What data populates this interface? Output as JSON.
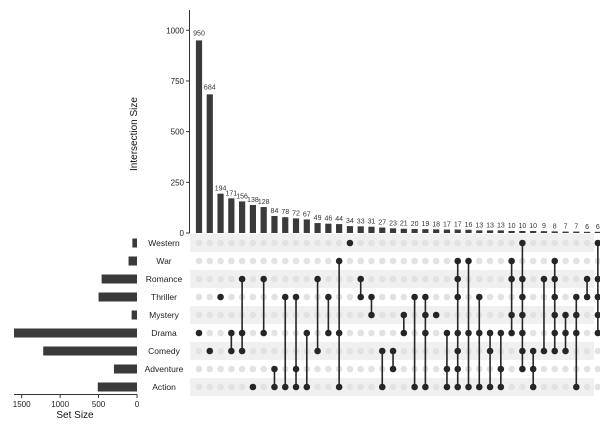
{
  "chart_data": {
    "type": "upset",
    "sets": [
      "Western",
      "War",
      "Romance",
      "Thriller",
      "Mystery",
      "Drama",
      "Comedy",
      "Adventure",
      "Action"
    ],
    "set_sizes": [
      60,
      110,
      460,
      500,
      70,
      1600,
      1220,
      300,
      510
    ],
    "set_size_axis": {
      "title": "Set Size",
      "ticks": [
        1500,
        1000,
        500,
        0
      ],
      "lim": [
        0,
        1600
      ]
    },
    "intersection_axis": {
      "title": "Intersection Size",
      "ticks": [
        0,
        250,
        500,
        750,
        1000
      ],
      "lim": [
        0,
        1100
      ]
    },
    "intersections": [
      {
        "size": 950,
        "sets": [
          "Drama"
        ]
      },
      {
        "size": 684,
        "sets": [
          "Comedy"
        ]
      },
      {
        "size": 194,
        "sets": [
          "Thriller"
        ]
      },
      {
        "size": 171,
        "sets": [
          "Comedy",
          "Drama"
        ]
      },
      {
        "size": 156,
        "sets": [
          "Romance",
          "Drama",
          "Comedy"
        ]
      },
      {
        "size": 138,
        "sets": [
          "Action"
        ]
      },
      {
        "size": 128,
        "sets": [
          "Romance",
          "Drama"
        ]
      },
      {
        "size": 84,
        "sets": [
          "Action",
          "Adventure"
        ]
      },
      {
        "size": 78,
        "sets": [
          "Thriller",
          "Action"
        ]
      },
      {
        "size": 72,
        "sets": [
          "Thriller",
          "Action",
          "Adventure"
        ]
      },
      {
        "size": 67,
        "sets": [
          "Action",
          "Drama"
        ]
      },
      {
        "size": 49,
        "sets": [
          "Romance",
          "Comedy"
        ]
      },
      {
        "size": 46,
        "sets": [
          "Thriller",
          "Drama"
        ]
      },
      {
        "size": 44,
        "sets": [
          "War",
          "Drama",
          "Action"
        ]
      },
      {
        "size": 34,
        "sets": [
          "Western"
        ]
      },
      {
        "size": 33,
        "sets": [
          "Romance",
          "Thriller"
        ]
      },
      {
        "size": 31,
        "sets": [
          "Mystery",
          "Thriller"
        ]
      },
      {
        "size": 27,
        "sets": [
          "Action",
          "Comedy"
        ]
      },
      {
        "size": 23,
        "sets": [
          "Comedy",
          "Adventure"
        ]
      },
      {
        "size": 21,
        "sets": [
          "Drama",
          "Mystery"
        ]
      },
      {
        "size": 20,
        "sets": [
          "Thriller",
          "Action"
        ]
      },
      {
        "size": 19,
        "sets": [
          "Mystery",
          "Thriller",
          "Drama",
          "Action"
        ]
      },
      {
        "size": 18,
        "sets": [
          "Mystery"
        ]
      },
      {
        "size": 17,
        "sets": [
          "Action",
          "Drama",
          "Adventure"
        ]
      },
      {
        "size": 17,
        "sets": [
          "War",
          "Action",
          "Drama",
          "Thriller",
          "Comedy",
          "Adventure",
          "Romance"
        ]
      },
      {
        "size": 16,
        "sets": [
          "War",
          "Action",
          "Drama"
        ]
      },
      {
        "size": 13,
        "sets": [
          "Thriller",
          "Action",
          "Drama"
        ]
      },
      {
        "size": 13,
        "sets": [
          "Action",
          "Comedy",
          "Drama"
        ]
      },
      {
        "size": 13,
        "sets": [
          "Adventure",
          "Action",
          "Drama"
        ]
      },
      {
        "size": 10,
        "sets": [
          "Romance",
          "War",
          "Mystery",
          "Drama"
        ]
      },
      {
        "size": 10,
        "sets": [
          "Western",
          "Romance",
          "Thriller",
          "Mystery",
          "Drama",
          "Comedy",
          "Adventure"
        ]
      },
      {
        "size": 10,
        "sets": [
          "Comedy",
          "Adventure",
          "Action"
        ]
      },
      {
        "size": 9,
        "sets": [
          "Romance",
          "Comedy"
        ]
      },
      {
        "size": 8,
        "sets": [
          "War",
          "Romance",
          "Thriller",
          "Mystery",
          "Drama",
          "Comedy"
        ]
      },
      {
        "size": 7,
        "sets": [
          "Mystery",
          "Drama",
          "Comedy"
        ]
      },
      {
        "size": 7,
        "sets": [
          "Thriller",
          "Mystery",
          "Drama",
          "Action"
        ]
      },
      {
        "size": 6,
        "sets": [
          "Romance",
          "Thriller"
        ]
      },
      {
        "size": 6,
        "sets": [
          "Romance",
          "Thriller",
          "Mystery",
          "Drama",
          "Western"
        ]
      },
      {
        "size": 6,
        "sets": [
          "Thriller",
          "Mystery",
          "Drama",
          "Comedy",
          "Adventure"
        ]
      }
    ],
    "colors": {
      "bar": "#3a3a3a",
      "dot_on": "#262626",
      "dot_off": "#e2e2e2",
      "stripe": "#f0f0f0",
      "line": "#262626"
    }
  }
}
